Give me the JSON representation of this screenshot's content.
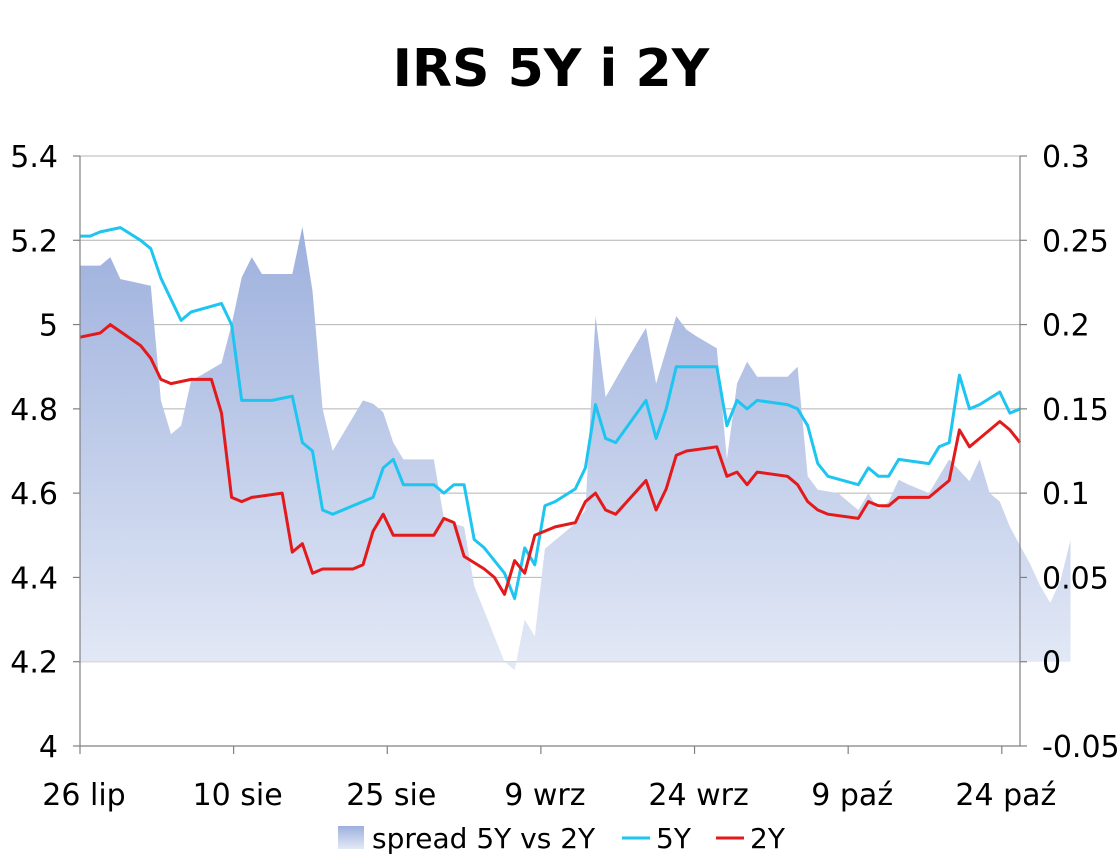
{
  "chart_data": {
    "type": "line",
    "title": "IRS 5Y i 2Y",
    "x_tick_labels": [
      "26 lip",
      "10 sie",
      "25 sie",
      "9 wrz",
      "24 wrz",
      "9 paź",
      "24 paź"
    ],
    "y_left": {
      "ticks": [
        "5.4",
        "5.2",
        "5",
        "4.8",
        "4.6",
        "4.4",
        "4.2",
        "4"
      ],
      "range": [
        4,
        5.4
      ]
    },
    "y_right": {
      "ticks": [
        "0.3",
        "0.25",
        "0.2",
        "0.15",
        "0.1",
        "0.05",
        "0",
        "-0.05"
      ],
      "range": [
        -0.05,
        0.3
      ]
    },
    "grid": "horizontal",
    "legend_position": "bottom",
    "series": [
      {
        "name": "spread 5Y vs 2Y",
        "type": "area",
        "axis": "right",
        "color_top": "#9db0dd",
        "color_bottom": "#e3e9f6",
        "points": [
          [
            0,
            0.235
          ],
          [
            2,
            0.235
          ],
          [
            3,
            0.24
          ],
          [
            4,
            0.227
          ],
          [
            7,
            0.223
          ],
          [
            8,
            0.155
          ],
          [
            9,
            0.135
          ],
          [
            10,
            0.14
          ],
          [
            11,
            0.167
          ],
          [
            12,
            0.17
          ],
          [
            14,
            0.177
          ],
          [
            15,
            0.2
          ],
          [
            16,
            0.228
          ],
          [
            17,
            0.24
          ],
          [
            18,
            0.23
          ],
          [
            21,
            0.23
          ],
          [
            22,
            0.258
          ],
          [
            23,
            0.22
          ],
          [
            24,
            0.15
          ],
          [
            25,
            0.125
          ],
          [
            26,
            0.135
          ],
          [
            27,
            0.145
          ],
          [
            28,
            0.155
          ],
          [
            29,
            0.153
          ],
          [
            30,
            0.148
          ],
          [
            31,
            0.13
          ],
          [
            32,
            0.12
          ],
          [
            35,
            0.12
          ],
          [
            36,
            0.085
          ],
          [
            37,
            0.082
          ],
          [
            38,
            0.08
          ],
          [
            39,
            0.045
          ],
          [
            40,
            0.03
          ],
          [
            41,
            0.015
          ],
          [
            42,
            0.0
          ],
          [
            43,
            -0.005
          ],
          [
            44,
            0.025
          ],
          [
            45,
            0.015
          ],
          [
            46,
            0.067
          ],
          [
            47,
            0.072
          ],
          [
            49,
            0.082
          ],
          [
            50,
            0.09
          ],
          [
            51,
            0.205
          ],
          [
            52,
            0.157
          ],
          [
            54,
            0.178
          ],
          [
            56,
            0.198
          ],
          [
            57,
            0.165
          ],
          [
            59,
            0.205
          ],
          [
            60,
            0.197
          ],
          [
            61,
            0.193
          ],
          [
            63,
            0.186
          ],
          [
            64,
            0.12
          ],
          [
            65,
            0.165
          ],
          [
            66,
            0.178
          ],
          [
            67,
            0.169
          ],
          [
            70,
            0.169
          ],
          [
            71,
            0.175
          ],
          [
            72,
            0.11
          ],
          [
            73,
            0.102
          ],
          [
            75,
            0.1
          ],
          [
            76,
            0.095
          ],
          [
            77,
            0.09
          ],
          [
            78,
            0.1
          ],
          [
            79,
            0.09
          ],
          [
            80,
            0.095
          ],
          [
            81,
            0.108
          ],
          [
            82,
            0.105
          ],
          [
            84,
            0.1
          ],
          [
            85,
            0.11
          ],
          [
            86,
            0.12
          ],
          [
            88,
            0.107
          ],
          [
            89,
            0.12
          ],
          [
            90,
            0.1
          ],
          [
            91,
            0.095
          ],
          [
            92,
            0.08
          ],
          [
            94,
            0.058
          ],
          [
            95,
            0.045
          ],
          [
            96,
            0.035
          ],
          [
            97,
            0.048
          ],
          [
            98,
            0.072
          ]
        ]
      },
      {
        "name": "5Y",
        "type": "line",
        "axis": "left",
        "color": "#1ec5f0",
        "points": [
          [
            0,
            5.21
          ],
          [
            1,
            5.21
          ],
          [
            2,
            5.22
          ],
          [
            4,
            5.23
          ],
          [
            6,
            5.2
          ],
          [
            7,
            5.18
          ],
          [
            8,
            5.11
          ],
          [
            9,
            5.06
          ],
          [
            10,
            5.01
          ],
          [
            11,
            5.03
          ],
          [
            14,
            5.05
          ],
          [
            15,
            5.0
          ],
          [
            16,
            4.82
          ],
          [
            19,
            4.82
          ],
          [
            21,
            4.83
          ],
          [
            22,
            4.72
          ],
          [
            23,
            4.7
          ],
          [
            24,
            4.56
          ],
          [
            25,
            4.55
          ],
          [
            27,
            4.57
          ],
          [
            29,
            4.59
          ],
          [
            30,
            4.66
          ],
          [
            31,
            4.68
          ],
          [
            32,
            4.62
          ],
          [
            35,
            4.62
          ],
          [
            36,
            4.6
          ],
          [
            37,
            4.62
          ],
          [
            38,
            4.62
          ],
          [
            39,
            4.49
          ],
          [
            40,
            4.47
          ],
          [
            41,
            4.44
          ],
          [
            42,
            4.41
          ],
          [
            43,
            4.35
          ],
          [
            44,
            4.47
          ],
          [
            45,
            4.43
          ],
          [
            46,
            4.57
          ],
          [
            47,
            4.58
          ],
          [
            49,
            4.61
          ],
          [
            50,
            4.66
          ],
          [
            51,
            4.81
          ],
          [
            52,
            4.73
          ],
          [
            53,
            4.72
          ],
          [
            56,
            4.82
          ],
          [
            57,
            4.73
          ],
          [
            58,
            4.8
          ],
          [
            59,
            4.9
          ],
          [
            60,
            4.9
          ],
          [
            63,
            4.9
          ],
          [
            64,
            4.76
          ],
          [
            65,
            4.82
          ],
          [
            66,
            4.8
          ],
          [
            67,
            4.82
          ],
          [
            70,
            4.81
          ],
          [
            71,
            4.8
          ],
          [
            72,
            4.76
          ],
          [
            73,
            4.67
          ],
          [
            74,
            4.64
          ],
          [
            77,
            4.62
          ],
          [
            78,
            4.66
          ],
          [
            79,
            4.64
          ],
          [
            80,
            4.64
          ],
          [
            81,
            4.68
          ],
          [
            84,
            4.67
          ],
          [
            85,
            4.71
          ],
          [
            86,
            4.72
          ],
          [
            87,
            4.88
          ],
          [
            88,
            4.8
          ],
          [
            89,
            4.81
          ],
          [
            91,
            4.84
          ],
          [
            92,
            4.79
          ],
          [
            93,
            4.8
          ]
        ]
      },
      {
        "name": "2Y",
        "type": "line",
        "axis": "left",
        "color": "#e31a1c",
        "points": [
          [
            0,
            4.97
          ],
          [
            2,
            4.98
          ],
          [
            3,
            5.0
          ],
          [
            6,
            4.95
          ],
          [
            7,
            4.92
          ],
          [
            8,
            4.87
          ],
          [
            9,
            4.86
          ],
          [
            11,
            4.87
          ],
          [
            13,
            4.87
          ],
          [
            14,
            4.79
          ],
          [
            15,
            4.59
          ],
          [
            16,
            4.58
          ],
          [
            17,
            4.59
          ],
          [
            20,
            4.6
          ],
          [
            21,
            4.46
          ],
          [
            22,
            4.48
          ],
          [
            23,
            4.41
          ],
          [
            24,
            4.42
          ],
          [
            26,
            4.42
          ],
          [
            27,
            4.42
          ],
          [
            28,
            4.43
          ],
          [
            29,
            4.51
          ],
          [
            30,
            4.55
          ],
          [
            31,
            4.5
          ],
          [
            33,
            4.5
          ],
          [
            34,
            4.5
          ],
          [
            35,
            4.5
          ],
          [
            36,
            4.54
          ],
          [
            37,
            4.53
          ],
          [
            38,
            4.45
          ],
          [
            40,
            4.42
          ],
          [
            41,
            4.4
          ],
          [
            42,
            4.36
          ],
          [
            43,
            4.44
          ],
          [
            44,
            4.41
          ],
          [
            45,
            4.5
          ],
          [
            46,
            4.51
          ],
          [
            47,
            4.52
          ],
          [
            49,
            4.53
          ],
          [
            50,
            4.58
          ],
          [
            51,
            4.6
          ],
          [
            52,
            4.56
          ],
          [
            53,
            4.55
          ],
          [
            56,
            4.63
          ],
          [
            57,
            4.56
          ],
          [
            58,
            4.61
          ],
          [
            59,
            4.69
          ],
          [
            60,
            4.7
          ],
          [
            63,
            4.71
          ],
          [
            64,
            4.64
          ],
          [
            65,
            4.65
          ],
          [
            66,
            4.62
          ],
          [
            67,
            4.65
          ],
          [
            70,
            4.64
          ],
          [
            71,
            4.62
          ],
          [
            72,
            4.58
          ],
          [
            73,
            4.56
          ],
          [
            74,
            4.55
          ],
          [
            77,
            4.54
          ],
          [
            78,
            4.58
          ],
          [
            79,
            4.57
          ],
          [
            80,
            4.57
          ],
          [
            81,
            4.59
          ],
          [
            84,
            4.59
          ],
          [
            85,
            4.61
          ],
          [
            86,
            4.63
          ],
          [
            87,
            4.75
          ],
          [
            88,
            4.71
          ],
          [
            89,
            4.73
          ],
          [
            91,
            4.77
          ],
          [
            92,
            4.75
          ],
          [
            93,
            4.72
          ]
        ]
      }
    ]
  }
}
